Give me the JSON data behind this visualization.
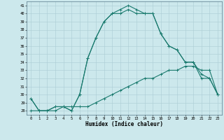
{
  "xlabel": "Humidex (Indice chaleur)",
  "background_color": "#cce8ec",
  "grid_color": "#aaccd4",
  "line_color": "#1a7a6e",
  "x_hours": [
    0,
    1,
    2,
    3,
    4,
    5,
    6,
    7,
    8,
    9,
    10,
    11,
    12,
    13,
    14,
    15,
    16,
    17,
    18,
    19,
    20,
    21,
    22,
    23
  ],
  "series1": [
    29.5,
    28.0,
    28.0,
    28.5,
    28.5,
    28.0,
    30.0,
    34.5,
    37.0,
    39.0,
    40.0,
    40.5,
    41.0,
    40.5,
    40.0,
    40.0,
    37.5,
    36.0,
    35.5,
    34.0,
    34.0,
    32.0,
    32.0,
    30.0
  ],
  "series2": [
    29.5,
    28.0,
    28.0,
    28.5,
    28.5,
    28.0,
    30.0,
    34.5,
    37.0,
    39.0,
    40.0,
    40.0,
    40.5,
    40.0,
    40.0,
    40.0,
    37.5,
    36.0,
    35.5,
    34.0,
    34.0,
    32.5,
    32.0,
    30.0
  ],
  "series3": [
    28.0,
    28.0,
    28.0,
    28.0,
    28.5,
    28.5,
    28.5,
    28.5,
    29.0,
    29.5,
    30.0,
    30.5,
    31.0,
    31.5,
    32.0,
    32.0,
    32.5,
    33.0,
    33.0,
    33.5,
    33.5,
    33.0,
    33.0,
    30.0
  ],
  "ylim": [
    27.5,
    41.5
  ],
  "xlim": [
    -0.5,
    23.5
  ],
  "yticks": [
    28,
    29,
    30,
    31,
    32,
    33,
    34,
    35,
    36,
    37,
    38,
    39,
    40,
    41
  ],
  "xticks": [
    0,
    1,
    2,
    3,
    4,
    5,
    6,
    7,
    8,
    9,
    10,
    11,
    12,
    13,
    14,
    15,
    16,
    17,
    18,
    19,
    20,
    21,
    22,
    23
  ]
}
